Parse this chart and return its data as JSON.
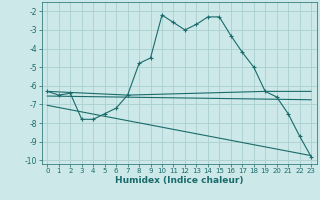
{
  "xlabel": "Humidex (Indice chaleur)",
  "bg_color": "#cce8e8",
  "grid_color": "#aad0d0",
  "line_color": "#1a6b6b",
  "xlim": [
    -0.5,
    23.5
  ],
  "ylim": [
    -10.2,
    -1.5
  ],
  "yticks": [
    -10,
    -9,
    -8,
    -7,
    -6,
    -5,
    -4,
    -3,
    -2
  ],
  "xticks": [
    0,
    1,
    2,
    3,
    4,
    5,
    6,
    7,
    8,
    9,
    10,
    11,
    12,
    13,
    14,
    15,
    16,
    17,
    18,
    19,
    20,
    21,
    22,
    23
  ],
  "series": [
    {
      "x": [
        0,
        1,
        2,
        3,
        4,
        5,
        6,
        7,
        8,
        9,
        10,
        11,
        12,
        13,
        14,
        15,
        16,
        17,
        18,
        19,
        20,
        21,
        22,
        23
      ],
      "y": [
        -6.3,
        -6.5,
        -6.4,
        -7.8,
        -7.8,
        -7.5,
        -7.2,
        -6.5,
        -4.8,
        -4.5,
        -2.2,
        -2.6,
        -3.0,
        -2.7,
        -2.3,
        -2.3,
        -3.3,
        -4.2,
        -5.0,
        -6.3,
        -6.6,
        -7.5,
        -8.7,
        -9.8
      ],
      "marker": true
    },
    {
      "x": [
        0,
        7,
        19,
        23
      ],
      "y": [
        -6.3,
        -6.5,
        -6.3,
        -6.3
      ],
      "marker": false
    },
    {
      "x": [
        0,
        23
      ],
      "y": [
        -6.55,
        -6.75
      ],
      "marker": false
    },
    {
      "x": [
        0,
        23
      ],
      "y": [
        -7.05,
        -9.75
      ],
      "marker": false
    }
  ]
}
